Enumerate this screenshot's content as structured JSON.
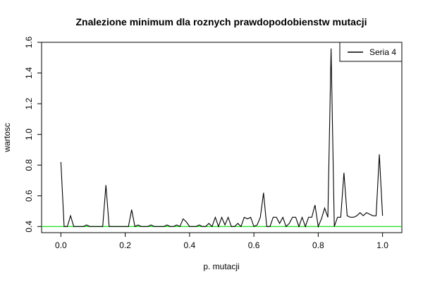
{
  "chart_data": {
    "type": "line",
    "title": "Znalezione minimum dla roznych prawdopodobienstw mutacji",
    "xlabel": "p. mutacji",
    "ylabel": "wartosc",
    "xlim": [
      -0.06,
      1.06
    ],
    "ylim": [
      0.36,
      1.6
    ],
    "xticks": [
      0.0,
      0.2,
      0.4,
      0.6,
      0.8,
      1.0
    ],
    "xtick_labels": [
      "0.0",
      "0.2",
      "0.4",
      "0.6",
      "0.8",
      "1.0"
    ],
    "yticks": [
      0.4,
      0.6,
      0.8,
      1.0,
      1.2,
      1.4,
      1.6
    ],
    "ytick_labels": [
      "0.4",
      "0.6",
      "0.8",
      "1.0",
      "1.2",
      "1.4",
      "1.6"
    ],
    "grid": false,
    "legend_position": "top-right",
    "reference_line": {
      "y": 0.4,
      "color": "#00dd00"
    },
    "series": [
      {
        "name": "Seria 4",
        "color": "#000000",
        "x": [
          0.0,
          0.01,
          0.02,
          0.03,
          0.04,
          0.05,
          0.06,
          0.07,
          0.08,
          0.09,
          0.1,
          0.11,
          0.12,
          0.13,
          0.14,
          0.15,
          0.16,
          0.17,
          0.18,
          0.19,
          0.2,
          0.21,
          0.22,
          0.23,
          0.24,
          0.25,
          0.26,
          0.27,
          0.28,
          0.29,
          0.3,
          0.31,
          0.32,
          0.33,
          0.34,
          0.35,
          0.36,
          0.37,
          0.38,
          0.39,
          0.4,
          0.41,
          0.42,
          0.43,
          0.44,
          0.45,
          0.46,
          0.47,
          0.48,
          0.49,
          0.5,
          0.51,
          0.52,
          0.53,
          0.54,
          0.55,
          0.56,
          0.57,
          0.58,
          0.59,
          0.6,
          0.61,
          0.62,
          0.63,
          0.64,
          0.65,
          0.66,
          0.67,
          0.68,
          0.69,
          0.7,
          0.71,
          0.72,
          0.73,
          0.74,
          0.75,
          0.76,
          0.77,
          0.78,
          0.79,
          0.8,
          0.81,
          0.82,
          0.83,
          0.84,
          0.85,
          0.86,
          0.87,
          0.88,
          0.89,
          0.9,
          0.91,
          0.92,
          0.93,
          0.94,
          0.95,
          0.96,
          0.97,
          0.98,
          0.99,
          1.0
        ],
        "y": [
          0.82,
          0.4,
          0.4,
          0.47,
          0.4,
          0.4,
          0.4,
          0.4,
          0.41,
          0.4,
          0.4,
          0.4,
          0.4,
          0.4,
          0.67,
          0.4,
          0.4,
          0.4,
          0.4,
          0.4,
          0.4,
          0.4,
          0.51,
          0.4,
          0.41,
          0.4,
          0.4,
          0.4,
          0.41,
          0.4,
          0.4,
          0.4,
          0.4,
          0.41,
          0.4,
          0.4,
          0.41,
          0.4,
          0.45,
          0.43,
          0.4,
          0.4,
          0.4,
          0.41,
          0.4,
          0.4,
          0.42,
          0.4,
          0.46,
          0.4,
          0.46,
          0.41,
          0.46,
          0.4,
          0.4,
          0.42,
          0.4,
          0.46,
          0.45,
          0.46,
          0.4,
          0.41,
          0.46,
          0.62,
          0.4,
          0.4,
          0.46,
          0.46,
          0.42,
          0.46,
          0.4,
          0.42,
          0.46,
          0.46,
          0.4,
          0.46,
          0.4,
          0.46,
          0.46,
          0.54,
          0.4,
          0.45,
          0.52,
          0.46,
          1.56,
          0.4,
          0.46,
          0.46,
          0.75,
          0.47,
          0.46,
          0.46,
          0.47,
          0.49,
          0.47,
          0.49,
          0.48,
          0.47,
          0.47,
          0.87,
          0.47
        ]
      }
    ]
  }
}
